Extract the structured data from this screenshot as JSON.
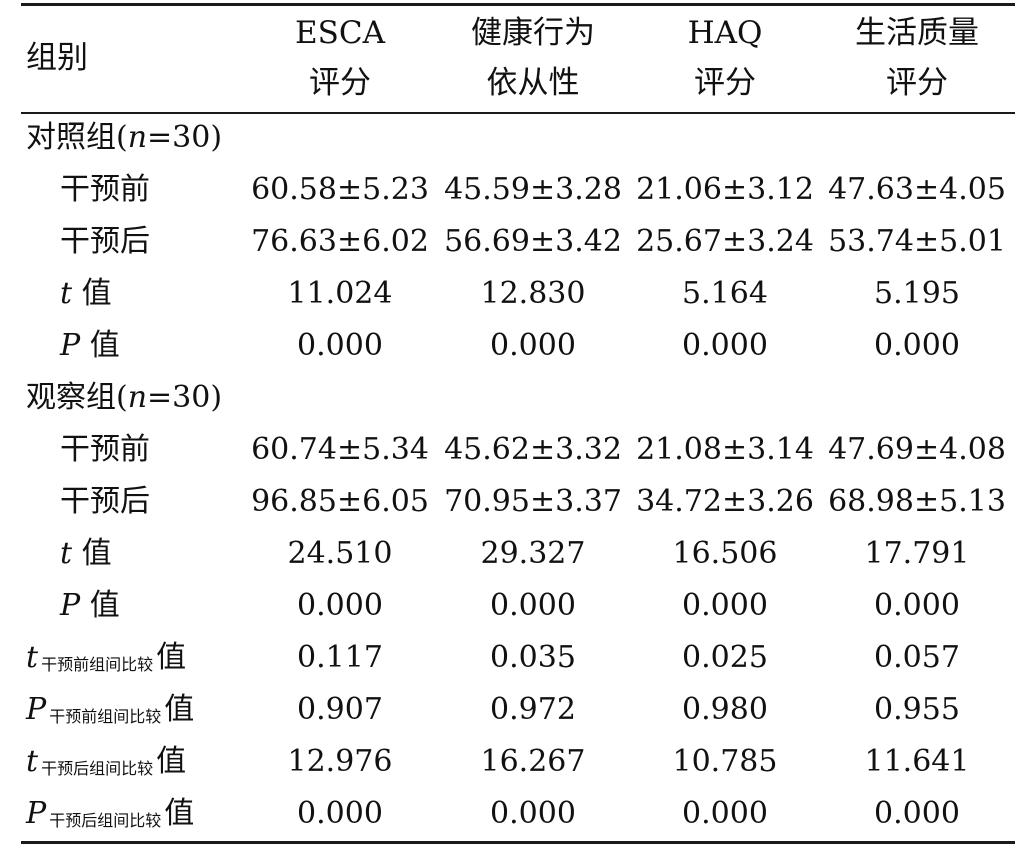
{
  "header": {
    "group": "组别",
    "cols": [
      {
        "line1": "ESCA",
        "line2": "评分"
      },
      {
        "line1": "健康行为",
        "line2": "依从性"
      },
      {
        "line1": "HAQ",
        "line2": "评分"
      },
      {
        "line1": "生活质量",
        "line2": "评分"
      }
    ]
  },
  "groups": {
    "control": {
      "label": "对照组(",
      "n": "n",
      "eq": "=30)"
    },
    "observe": {
      "label": "观察组(",
      "n": "n",
      "eq": "=30)"
    }
  },
  "rows": {
    "c_pre": {
      "label": "干预前",
      "values": [
        "60.58±5.23",
        "45.59±3.28",
        "21.06±3.12",
        "47.63±4.05"
      ]
    },
    "c_post": {
      "label": "干预后",
      "values": [
        "76.63±6.02",
        "56.69±3.42",
        "25.67±3.24",
        "53.74±5.01"
      ]
    },
    "c_t": {
      "sym": "t",
      "label": "值",
      "values": [
        "11.024",
        "12.830",
        "5.164",
        "5.195"
      ]
    },
    "c_p": {
      "sym": "P",
      "label": "值",
      "values": [
        "0.000",
        "0.000",
        "0.000",
        "0.000"
      ]
    },
    "o_pre": {
      "label": "干预前",
      "values": [
        "60.74±5.34",
        "45.62±3.32",
        "21.08±3.14",
        "47.69±4.08"
      ]
    },
    "o_post": {
      "label": "干预后",
      "values": [
        "96.85±6.05",
        "70.95±3.37",
        "34.72±3.26",
        "68.98±5.13"
      ]
    },
    "o_t": {
      "sym": "t",
      "label": "值",
      "values": [
        "24.510",
        "29.327",
        "16.506",
        "17.791"
      ]
    },
    "o_p": {
      "sym": "P",
      "label": "值",
      "values": [
        "0.000",
        "0.000",
        "0.000",
        "0.000"
      ]
    },
    "b_t_pre": {
      "sym": "t",
      "sub": "干预前组间比较",
      "label": "值",
      "values": [
        "0.117",
        "0.035",
        "0.025",
        "0.057"
      ]
    },
    "b_p_pre": {
      "sym": "P",
      "sub": "干预前组间比较",
      "label": "值",
      "values": [
        "0.907",
        "0.972",
        "0.980",
        "0.955"
      ]
    },
    "b_t_post": {
      "sym": "t",
      "sub": "干预后组间比较",
      "label": "值",
      "values": [
        "12.976",
        "16.267",
        "10.785",
        "11.641"
      ]
    },
    "b_p_post": {
      "sym": "P",
      "sub": "干预后组间比较",
      "label": "值",
      "values": [
        "0.000",
        "0.000",
        "0.000",
        "0.000"
      ]
    }
  }
}
